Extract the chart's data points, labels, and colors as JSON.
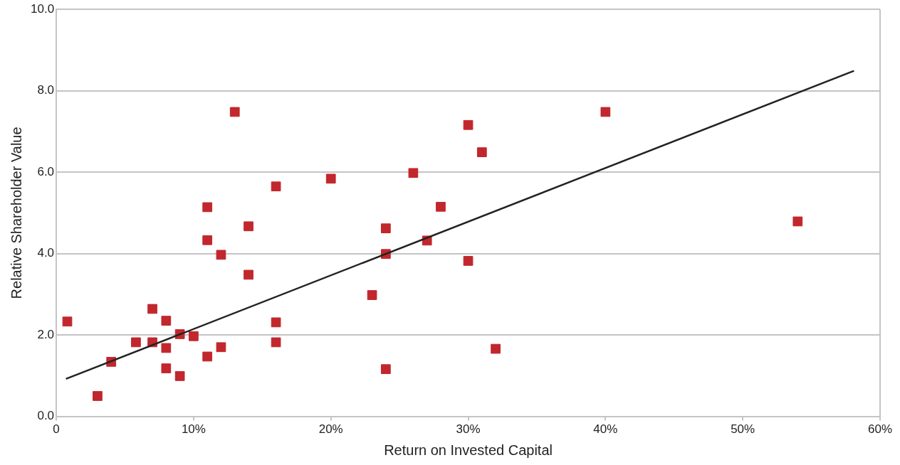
{
  "chart_data": {
    "type": "scatter",
    "xlabel": "Return on Invested Capital",
    "ylabel": "Relative Shareholder Value",
    "xlim": [
      0,
      60
    ],
    "xticks": [
      0,
      {
        "value": 10,
        "label": "10%"
      },
      {
        "value": 20,
        "label": "20%"
      },
      {
        "value": 30,
        "label": "30%"
      },
      {
        "value": 40,
        "label": "40%"
      },
      {
        "value": 50,
        "label": "50%"
      },
      {
        "value": 60,
        "label": "60%"
      }
    ],
    "ylim": [
      0,
      10
    ],
    "yticks": [
      {
        "value": 0,
        "label": "0.0"
      },
      {
        "value": 2,
        "label": "2.0"
      },
      {
        "value": 4,
        "label": "4.0"
      },
      {
        "value": 6,
        "label": "6.0"
      },
      {
        "value": 8,
        "label": "8.0"
      },
      {
        "value": 10,
        "label": "10.0"
      }
    ],
    "grid": "y",
    "legend": false,
    "marker": "square",
    "series": [
      {
        "type": "scatter",
        "color": "#c1272d",
        "x": [
          0.8,
          3,
          4,
          5.8,
          7,
          7,
          8,
          8,
          8,
          9,
          9,
          10,
          11,
          11,
          11,
          12,
          12,
          13,
          14,
          14,
          16,
          16,
          16,
          20,
          23,
          24,
          24,
          24,
          26,
          27,
          28,
          30,
          30,
          31,
          32,
          40,
          54
        ],
        "values": [
          2.33,
          0.5,
          1.34,
          1.82,
          2.64,
          1.82,
          2.35,
          1.68,
          1.18,
          2.02,
          0.99,
          1.97,
          5.14,
          4.33,
          1.47,
          3.97,
          1.7,
          7.48,
          4.67,
          3.48,
          5.65,
          2.31,
          1.82,
          5.84,
          2.98,
          4.62,
          3.99,
          1.16,
          5.98,
          4.32,
          5.15,
          7.16,
          3.82,
          6.49,
          1.66,
          7.48,
          4.79
        ]
      },
      {
        "type": "line",
        "color": "#222222",
        "marker": "none",
        "x": [
          0.7,
          58.1
        ],
        "values": [
          0.92,
          8.49
        ]
      }
    ]
  }
}
